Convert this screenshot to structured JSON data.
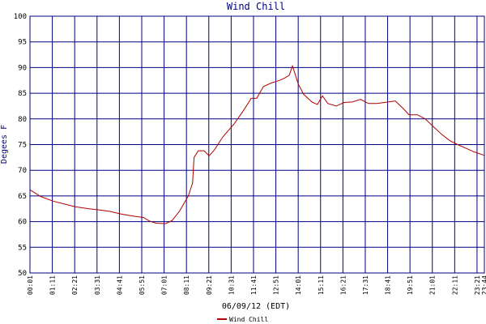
{
  "chart_data": {
    "type": "line",
    "title": "Wind Chill",
    "x_label": "06/09/12 (EDT)",
    "y_label": "Degees F",
    "x": [
      "00:01",
      "00:34",
      "01:12",
      "01:50",
      "02:23",
      "03:06",
      "03:34",
      "04:10",
      "04:45",
      "05:21",
      "05:56",
      "06:16",
      "06:36",
      "07:06",
      "07:26",
      "07:49",
      "08:17",
      "08:30",
      "08:35",
      "08:48",
      "09:06",
      "09:22",
      "09:39",
      "10:05",
      "10:40",
      "11:08",
      "11:34",
      "11:51",
      "12:12",
      "12:37",
      "13:02",
      "13:20",
      "13:33",
      "13:43",
      "14:01",
      "14:18",
      "14:44",
      "15:01",
      "15:17",
      "15:34",
      "16:00",
      "16:25",
      "16:51",
      "17:16",
      "17:41",
      "18:07",
      "18:32",
      "19:05",
      "19:30",
      "19:48",
      "20:14",
      "20:39",
      "21:04",
      "21:30",
      "21:55",
      "22:20",
      "22:46",
      "23:11",
      "23:44"
    ],
    "series": [
      {
        "name": "Wind Chill",
        "color": "#b00000",
        "values": [
          66.2,
          64.9,
          64.0,
          63.4,
          62.9,
          62.5,
          62.3,
          62.0,
          61.5,
          61.1,
          60.8,
          60.1,
          59.7,
          59.6,
          60.2,
          62.0,
          65.0,
          67.5,
          72.5,
          73.8,
          73.8,
          72.8,
          74.0,
          76.5,
          79.0,
          81.5,
          84.0,
          84.0,
          86.3,
          87.0,
          87.5,
          88.0,
          88.5,
          90.3,
          86.8,
          84.8,
          83.3,
          82.8,
          84.5,
          83.0,
          82.5,
          83.2,
          83.3,
          83.8,
          83.0,
          83.0,
          83.2,
          83.5,
          82.0,
          80.8,
          80.8,
          80.0,
          78.5,
          77.0,
          75.8,
          75.0,
          74.3,
          73.6,
          72.9
        ]
      }
    ],
    "xlim": [
      "00:01",
      "23:44"
    ],
    "xticks": [
      "00:01",
      "01:11",
      "02:21",
      "03:31",
      "04:41",
      "05:51",
      "07:01",
      "08:11",
      "09:21",
      "10:31",
      "11:41",
      "12:51",
      "14:01",
      "15:11",
      "16:21",
      "17:31",
      "18:41",
      "19:51",
      "21:01",
      "22:11",
      "23:21",
      "23:44"
    ],
    "ylim": [
      50,
      100
    ],
    "yticks": [
      50,
      55,
      60,
      65,
      70,
      75,
      80,
      85,
      90,
      95,
      100
    ],
    "grid": true,
    "grid_color": "#000080",
    "legend": "bottom"
  }
}
